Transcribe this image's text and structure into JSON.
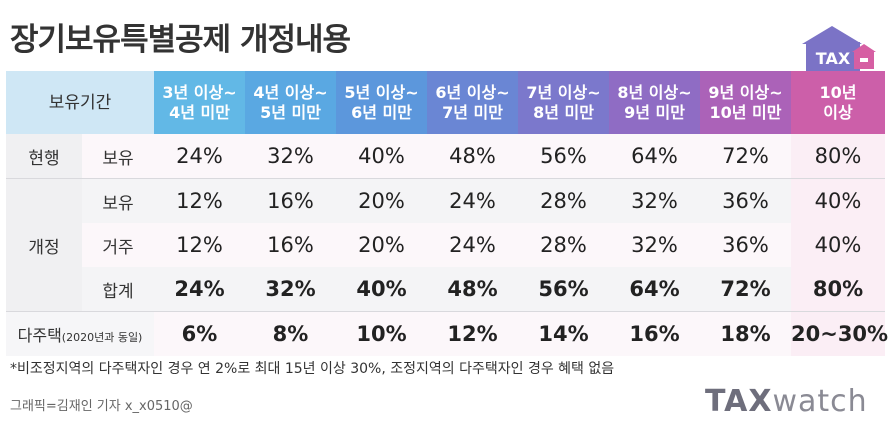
{
  "title": "장기보유특별공제 개정내용",
  "logo": {
    "house_text": "TAX",
    "colors": {
      "house": "#7b73c6",
      "door": "#d65fa3"
    }
  },
  "table": {
    "corner_label": "보유기간",
    "columns": [
      {
        "line1": "3년 이상~",
        "line2": "4년 미만",
        "color": "#62b8e6"
      },
      {
        "line1": "4년 이상~",
        "line2": "5년 미만",
        "color": "#5aa8e2"
      },
      {
        "line1": "5년 이상~",
        "line2": "6년 미만",
        "color": "#5c97dc"
      },
      {
        "line1": "6년 이상~",
        "line2": "7년 미만",
        "color": "#6a86d4"
      },
      {
        "line1": "7년 이상~",
        "line2": "8년 미만",
        "color": "#7b78cc"
      },
      {
        "line1": "8년 이상~",
        "line2": "9년 미만",
        "color": "#8f6cc4"
      },
      {
        "line1": "9년 이상~",
        "line2": "10년 미만",
        "color": "#ab62b8"
      },
      {
        "line1": "10년",
        "line2": "이상",
        "color": "#cc5fa9"
      }
    ],
    "current": {
      "group": "현행",
      "label": "보유",
      "values": [
        "24%",
        "32%",
        "40%",
        "48%",
        "56%",
        "64%",
        "72%",
        "80%"
      ]
    },
    "revised": {
      "group": "개정",
      "rows": [
        {
          "label": "보유",
          "values": [
            "12%",
            "16%",
            "20%",
            "24%",
            "28%",
            "32%",
            "36%",
            "40%"
          ]
        },
        {
          "label": "거주",
          "values": [
            "12%",
            "16%",
            "20%",
            "24%",
            "28%",
            "32%",
            "36%",
            "40%"
          ]
        },
        {
          "label": "합계",
          "values": [
            "24%",
            "32%",
            "40%",
            "48%",
            "56%",
            "64%",
            "72%",
            "80%"
          ]
        }
      ]
    },
    "multi": {
      "label_main": "다주택",
      "label_small": "(2020년과 동일)",
      "values": [
        "6%",
        "8%",
        "10%",
        "12%",
        "14%",
        "16%",
        "18%",
        "20~30%"
      ]
    }
  },
  "footnote": "*비조정지역의 다주택자인 경우 연 2%로 최대 15년 이상 30%, 조정지역의 다주택자인 경우 혜택 없음",
  "credit": "그래픽=김재인 기자 x_x0510@",
  "brand": {
    "bold": "TAX",
    "light": "watch"
  }
}
